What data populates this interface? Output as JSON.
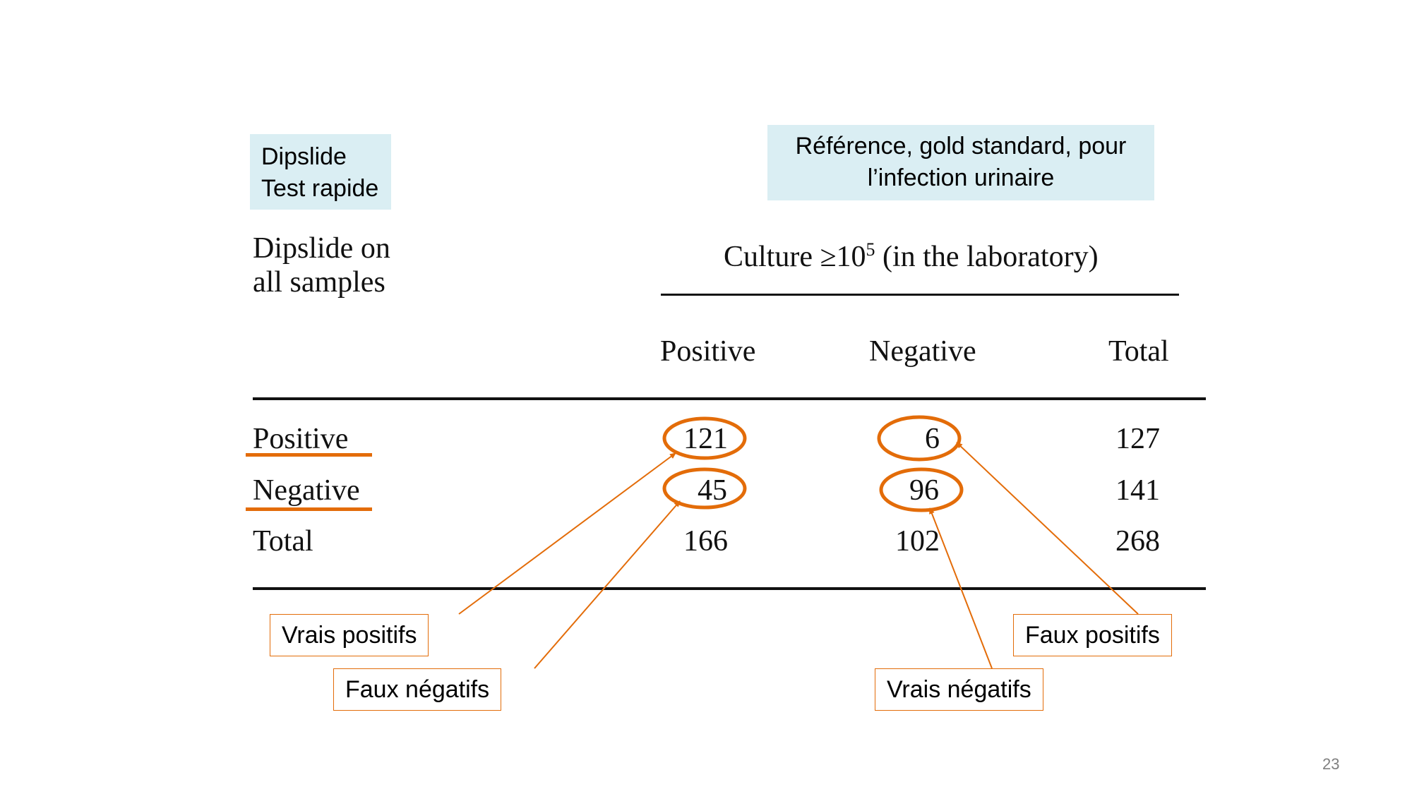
{
  "notes": {
    "dipslide_line1": "Dipslide",
    "dipslide_line2": "Test rapide",
    "reference_line1": "Référence, gold standard, pour",
    "reference_line2": "l’infection urinaire"
  },
  "table": {
    "row_header_line1": "Dipslide on",
    "row_header_line2": "all samples",
    "col_group_header_pre": "Culture ≥10",
    "col_group_header_sup": "5",
    "col_group_header_post": " (in the laboratory)",
    "columns": [
      "Positive",
      "Negative",
      "Total"
    ],
    "rows": [
      {
        "label": "Positive",
        "values": [
          "121",
          "6",
          "127"
        ]
      },
      {
        "label": "Negative",
        "values": [
          "45",
          "96",
          "141"
        ]
      },
      {
        "label": "Total",
        "values": [
          "166",
          "102",
          "268"
        ]
      }
    ]
  },
  "callouts": {
    "true_positives": "Vrais positifs",
    "false_negatives": "Faux négatifs",
    "false_positives": "Faux positifs",
    "true_negatives": "Vrais négatifs"
  },
  "colors": {
    "accent": "#e36c09",
    "note_background": "#daeef3"
  },
  "page_number": "23"
}
